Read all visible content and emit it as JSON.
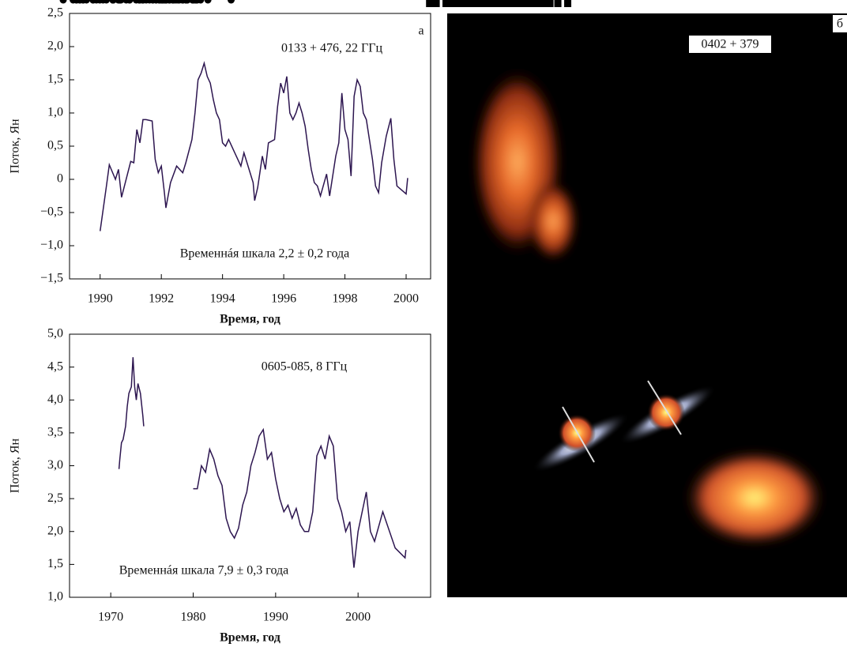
{
  "chart_data": [
    {
      "type": "line",
      "panel_label": "а",
      "annotations": [
        "0133 + 476, 22 ГГц",
        "Временнáя шкала 2,2 ± 0,2 года"
      ],
      "x_label": "Время, год",
      "y_label": "Поток, Ян",
      "xlim": [
        1989,
        2000.8
      ],
      "ylim": [
        -1.5,
        2.5
      ],
      "xticks": [
        1990,
        1992,
        1994,
        1996,
        1998,
        2000
      ],
      "yticks": [
        {
          "value": 2.5,
          "label": "2,5"
        },
        {
          "value": 2.0,
          "label": "2,0"
        },
        {
          "value": 1.5,
          "label": "1,5"
        },
        {
          "value": 1.0,
          "label": "1,0"
        },
        {
          "value": 0.5,
          "label": "0,5"
        },
        0,
        {
          "value": -0.5,
          "label": "−0,5"
        },
        {
          "value": -1.0,
          "label": "−1,0"
        },
        {
          "value": -1.5,
          "label": "−1,5"
        }
      ],
      "series": [
        {
          "color": "#2d1650",
          "marker": "circle",
          "x": [
            1990.0,
            1990.2,
            1990.3,
            1990.5,
            1990.6,
            1990.7,
            1991.0,
            1991.1,
            1991.2,
            1991.3,
            1991.4,
            1991.5,
            1991.7,
            1991.8,
            1991.9,
            1992.0,
            1992.1,
            1992.15,
            1992.3,
            1992.5,
            1992.7,
            1992.8,
            1993.0,
            1993.1,
            1993.2,
            1993.3,
            1993.4,
            1993.5,
            1993.6,
            1993.7,
            1993.8,
            1993.9,
            1994.0,
            1994.1,
            1994.2,
            1994.4,
            1994.6,
            1994.7,
            1995.0,
            1995.05,
            1995.15,
            1995.3,
            1995.4,
            1995.5,
            1995.7,
            1995.8,
            1995.9,
            1996.0,
            1996.1,
            1996.2,
            1996.3,
            1996.4,
            1996.5,
            1996.6,
            1996.7,
            1996.8,
            1996.9,
            1997.0,
            1997.1,
            1997.2,
            1997.4,
            1997.5,
            1997.7,
            1997.8,
            1997.9,
            1998.0,
            1998.1,
            1998.2,
            1998.3,
            1998.4,
            1998.5,
            1998.6,
            1998.7,
            1998.8,
            1998.9,
            1999.0,
            1999.1,
            1999.2,
            1999.35,
            1999.5,
            1999.6,
            1999.7,
            2000.0,
            2000.05
          ],
          "values": [
            -0.78,
            -0.12,
            0.22,
            0.0,
            0.15,
            -0.27,
            0.27,
            0.25,
            0.75,
            0.55,
            0.9,
            0.9,
            0.88,
            0.3,
            0.1,
            0.2,
            -0.2,
            -0.43,
            -0.05,
            0.2,
            0.1,
            0.25,
            0.6,
            1.0,
            1.5,
            1.6,
            1.75,
            1.55,
            1.45,
            1.2,
            1.0,
            0.9,
            0.55,
            0.5,
            0.6,
            0.4,
            0.2,
            0.4,
            -0.05,
            -0.32,
            -0.12,
            0.35,
            0.15,
            0.55,
            0.6,
            1.1,
            1.45,
            1.3,
            1.55,
            1.0,
            0.9,
            1.0,
            1.15,
            1.0,
            0.8,
            0.45,
            0.15,
            -0.05,
            -0.1,
            -0.25,
            0.08,
            -0.25,
            0.35,
            0.55,
            1.3,
            0.75,
            0.6,
            0.05,
            1.25,
            1.5,
            1.4,
            1.0,
            0.9,
            0.6,
            0.3,
            -0.1,
            -0.2,
            0.25,
            0.65,
            0.92,
            0.3,
            -0.1,
            -0.22,
            0.02
          ]
        }
      ]
    },
    {
      "type": "line",
      "annotations": [
        "0605-085, 8 ГГц",
        "Временнáя шкала 7,9 ± 0,3 года"
      ],
      "x_label": "Время, год",
      "y_label": "Поток, Ян",
      "xlim": [
        1965,
        2008.8
      ],
      "ylim": [
        1.0,
        5.0
      ],
      "xticks": [
        1970,
        1980,
        1990,
        2000
      ],
      "yticks": [
        {
          "value": 5.0,
          "label": "5,0"
        },
        {
          "value": 4.5,
          "label": "4,5"
        },
        {
          "value": 4.0,
          "label": "4,0"
        },
        {
          "value": 3.5,
          "label": "3,5"
        },
        {
          "value": 3.0,
          "label": "3,0"
        },
        {
          "value": 2.5,
          "label": "2,5"
        },
        {
          "value": 2.0,
          "label": "2,0"
        },
        {
          "value": 1.5,
          "label": "1,5"
        },
        {
          "value": 1.0,
          "label": "1,0"
        }
      ],
      "series": [
        {
          "color": "#2d1650",
          "marker": "triangle",
          "x": [
            1971.0,
            1971.1,
            1971.3,
            1971.5,
            1971.8,
            1972.0,
            1972.2,
            1972.5,
            1972.7,
            1972.9,
            1973.1,
            1973.3,
            1973.6,
            1973.9,
            1974.0
          ],
          "values": [
            2.95,
            3.1,
            3.35,
            3.4,
            3.6,
            3.9,
            4.1,
            4.2,
            4.65,
            4.2,
            4.0,
            4.25,
            4.1,
            3.75,
            3.6
          ]
        },
        {
          "color": "#2d1650",
          "marker": "square",
          "x": [
            1980,
            1980.5,
            1981,
            1981.5,
            1982,
            1982.5,
            1983,
            1983.5,
            1984,
            1984.5,
            1985,
            1985.5,
            1986,
            1986.5,
            1987,
            1987.5,
            1988,
            1988.5,
            1989,
            1989.5,
            1990,
            1990.5,
            1991,
            1991.5,
            1992,
            1992.5,
            1993,
            1993.5,
            1994,
            1994.5,
            1995,
            1995.5,
            1996,
            1996.5,
            1997,
            1997.5,
            1998,
            1998.5,
            1999,
            1999.5,
            2000,
            2000.5,
            2001,
            2001.5,
            2002,
            2003,
            2004.5,
            2005.7,
            2005.8
          ],
          "values": [
            2.65,
            2.65,
            3.0,
            2.9,
            3.25,
            3.1,
            2.85,
            2.7,
            2.2,
            2.0,
            1.9,
            2.05,
            2.4,
            2.6,
            3.0,
            3.2,
            3.45,
            3.55,
            3.1,
            3.2,
            2.8,
            2.5,
            2.3,
            2.4,
            2.2,
            2.35,
            2.1,
            2.0,
            2.0,
            2.3,
            3.15,
            3.3,
            3.1,
            3.45,
            3.3,
            2.5,
            2.3,
            2.0,
            2.15,
            1.45,
            2.0,
            2.3,
            2.6,
            2.0,
            1.85,
            2.3,
            1.75,
            1.6,
            1.72
          ]
        }
      ]
    }
  ],
  "image_panel": {
    "label": "б",
    "caption": "0402 + 379"
  }
}
